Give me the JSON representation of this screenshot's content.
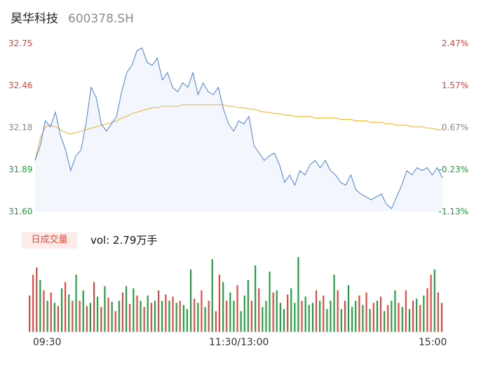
{
  "header": {
    "name": "昊华科技",
    "code": "600378.SH"
  },
  "volume_panel": {
    "tab_label": "日成交量",
    "vol_text": "vol: 2.79万手"
  },
  "time_axis": {
    "start": "09:30",
    "mid": "11:30/13:00",
    "end": "15:00"
  },
  "colors": {
    "price_line": "#4a7fe0",
    "avg_line": "#f0b028",
    "area_fill": "#f3f6fd",
    "up": "#e8413a",
    "down": "#1b9e3a",
    "neutral": "#999999"
  },
  "chart_data": [
    {
      "type": "line",
      "title": "",
      "x_range": [
        "09:30",
        "15:00"
      ],
      "ylim": [
        31.6,
        32.75
      ],
      "y_ticks": [
        "32.75",
        "32.46",
        "32.18",
        "31.89",
        "31.60"
      ],
      "pct_ticks": [
        "2.47%",
        "1.57%",
        "0.67%",
        "-0.23%",
        "-1.13%"
      ],
      "grid": false,
      "series": [
        {
          "values": [
            31.95,
            32.05,
            32.22,
            32.18,
            32.28,
            32.12,
            32.02,
            31.88,
            31.98,
            32.02,
            32.2,
            32.45,
            32.38,
            32.2,
            32.15,
            32.2,
            32.25,
            32.42,
            32.55,
            32.6,
            32.7,
            32.72,
            32.62,
            32.6,
            32.65,
            32.5,
            32.55,
            32.45,
            32.42,
            32.48,
            32.45,
            32.55,
            32.4,
            32.48,
            32.42,
            32.4,
            32.45,
            32.3,
            32.2,
            32.15,
            32.22,
            32.2,
            32.25,
            32.05,
            32.0,
            31.95,
            31.98,
            32.0,
            31.92,
            31.8,
            31.85,
            31.78,
            31.88,
            31.85,
            31.92,
            31.95,
            31.9,
            31.95,
            31.88,
            31.85,
            31.8,
            31.78,
            31.85,
            31.75,
            31.72,
            31.7,
            31.68,
            31.7,
            31.72,
            31.65,
            31.62,
            31.7,
            31.78,
            31.88,
            31.85,
            31.9,
            31.88,
            31.9,
            31.85,
            31.9,
            31.83
          ],
          "color": "#4a7fe0"
        },
        {
          "values": [
            31.95,
            32.1,
            32.18,
            32.19,
            32.18,
            32.16,
            32.14,
            32.13,
            32.14,
            32.15,
            32.16,
            32.17,
            32.18,
            32.19,
            32.2,
            32.21,
            32.22,
            32.24,
            32.25,
            32.27,
            32.28,
            32.29,
            32.3,
            32.31,
            32.31,
            32.32,
            32.32,
            32.32,
            32.32,
            32.33,
            32.33,
            32.33,
            32.33,
            32.33,
            32.33,
            32.33,
            32.33,
            32.33,
            32.32,
            32.32,
            32.31,
            32.31,
            32.3,
            32.3,
            32.29,
            32.28,
            32.28,
            32.27,
            32.27,
            32.26,
            32.26,
            32.25,
            32.25,
            32.25,
            32.25,
            32.24,
            32.24,
            32.24,
            32.24,
            32.24,
            32.23,
            32.23,
            32.23,
            32.22,
            32.22,
            32.22,
            32.21,
            32.21,
            32.21,
            32.2,
            32.2,
            32.19,
            32.19,
            32.19,
            32.18,
            32.18,
            32.18,
            32.17,
            32.17,
            32.16,
            32.16
          ],
          "color": "#f0b028"
        }
      ]
    },
    {
      "type": "bar",
      "title": "",
      "x_range": [
        "09:30",
        "15:00"
      ],
      "values": [
        35,
        55,
        62,
        50,
        40,
        30,
        38,
        28,
        25,
        42,
        48,
        36,
        30,
        55,
        30,
        40,
        25,
        28,
        48,
        34,
        24,
        44,
        33,
        29,
        20,
        30,
        38,
        44,
        27,
        42,
        35,
        30,
        24,
        35,
        28,
        30,
        40,
        30,
        36,
        30,
        34,
        28,
        30,
        26,
        22,
        60,
        32,
        28,
        40,
        24,
        30,
        70,
        20,
        55,
        48,
        30,
        38,
        30,
        45,
        20,
        35,
        50,
        30,
        64,
        42,
        24,
        30,
        58,
        38,
        40,
        28,
        22,
        36,
        42,
        28,
        72,
        30,
        34,
        26,
        28,
        40,
        30,
        35,
        22,
        30,
        55,
        40,
        22,
        30,
        45,
        24,
        30,
        35,
        26,
        38,
        22,
        28,
        30,
        34,
        20,
        26,
        30,
        40,
        28,
        24,
        40,
        22,
        30,
        32,
        26,
        35,
        42,
        55,
        60,
        38,
        28
      ],
      "directions": [
        "up",
        "up",
        "up",
        "down",
        "up",
        "down",
        "up",
        "down",
        "up",
        "down",
        "up",
        "down",
        "up",
        "down",
        "up",
        "down",
        "up",
        "down",
        "up",
        "down",
        "up",
        "down",
        "up",
        "down",
        "up",
        "down",
        "up",
        "down",
        "up",
        "down",
        "up",
        "down",
        "up",
        "down",
        "up",
        "down",
        "up",
        "down",
        "up",
        "down",
        "up",
        "down",
        "up",
        "down",
        "down",
        "down",
        "up",
        "down",
        "up",
        "down",
        "up",
        "down",
        "up",
        "up",
        "down",
        "up",
        "down",
        "down",
        "up",
        "down",
        "down",
        "down",
        "up",
        "down",
        "up",
        "down",
        "down",
        "down",
        "up",
        "down",
        "down",
        "down",
        "up",
        "down",
        "down",
        "down",
        "up",
        "down",
        "down",
        "down",
        "up",
        "down",
        "up",
        "down",
        "down",
        "down",
        "up",
        "down",
        "up",
        "down",
        "down",
        "down",
        "up",
        "down",
        "up",
        "down",
        "up",
        "down",
        "up",
        "down",
        "up",
        "down",
        "down",
        "up",
        "down",
        "up",
        "down",
        "up",
        "down",
        "up",
        "down",
        "up",
        "up",
        "down",
        "up",
        "up"
      ]
    }
  ]
}
